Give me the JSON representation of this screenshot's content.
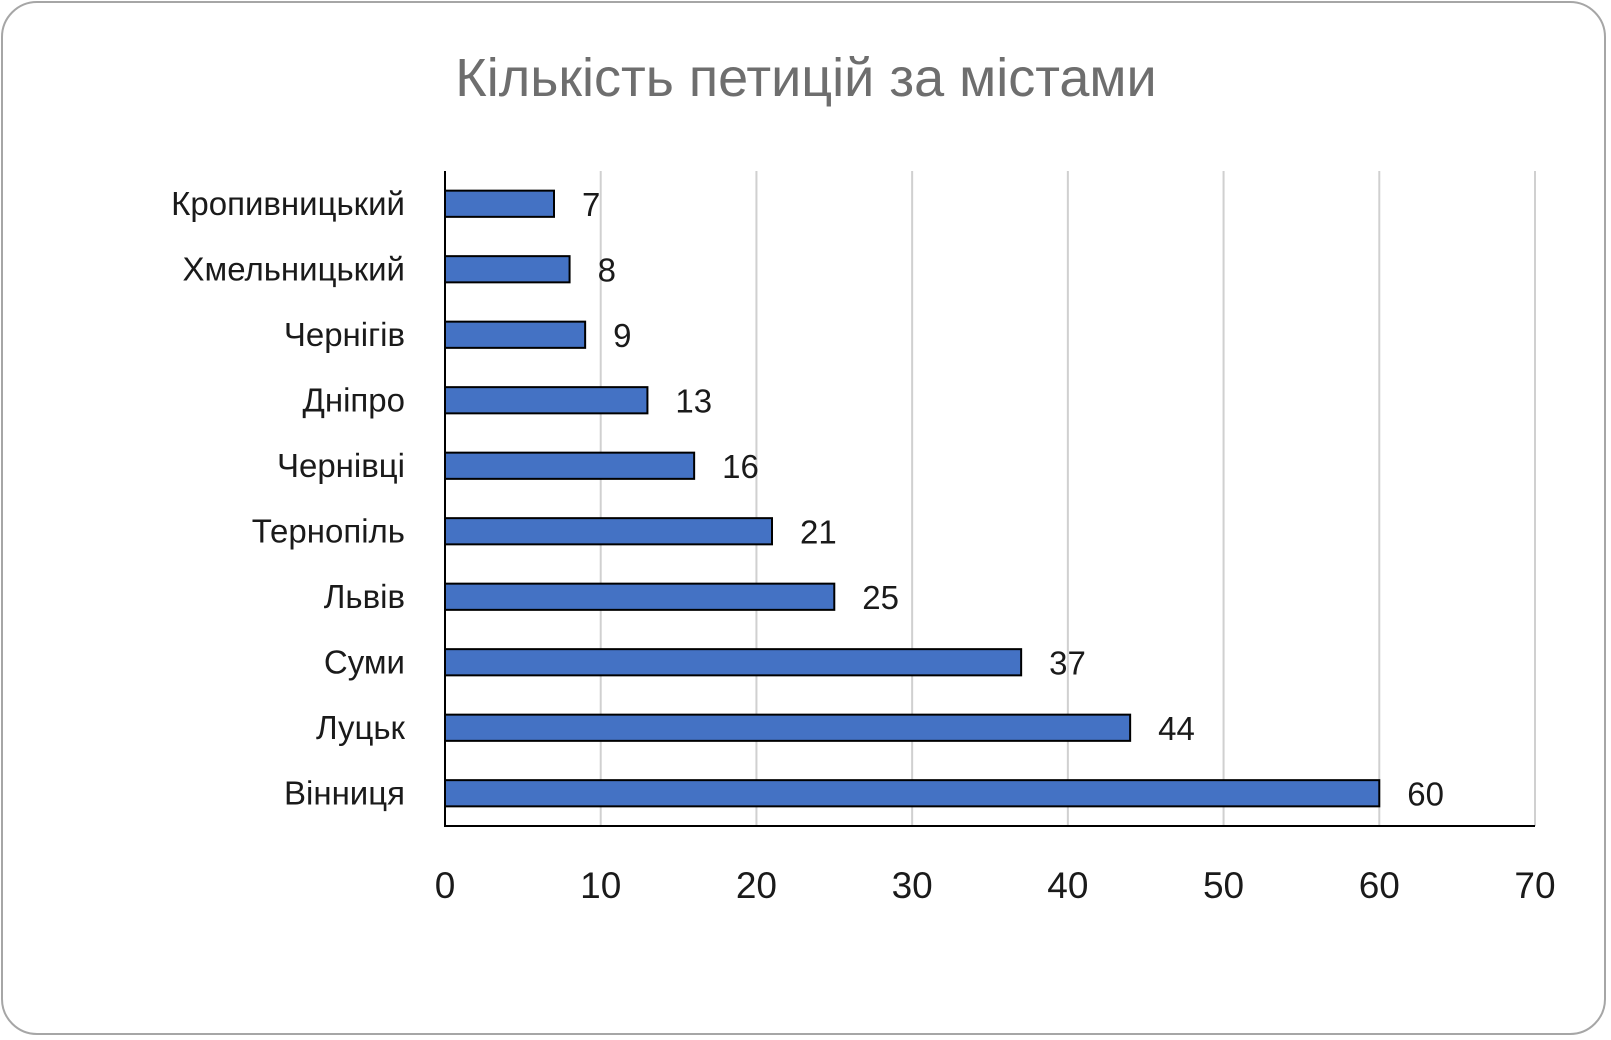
{
  "chart_data": {
    "type": "bar",
    "orientation": "horizontal",
    "title": "Кількість петицій за містами",
    "categories": [
      "Кропивницький",
      "Хмельницький",
      "Чернігів",
      "Дніпро",
      "Чернівці",
      "Тернопіль",
      "Львів",
      "Суми",
      "Луцьк",
      "Вінниця"
    ],
    "values": [
      7,
      8,
      9,
      13,
      16,
      21,
      25,
      37,
      44,
      60
    ],
    "xlim": [
      0,
      70
    ],
    "xticks": [
      0,
      10,
      20,
      30,
      40,
      50,
      60,
      70
    ],
    "grid": true,
    "legend": "none",
    "data_labels": true,
    "bar_color": "#4472c4",
    "bar_edge_color": "#000000",
    "grid_color": "#d0d0d0"
  }
}
